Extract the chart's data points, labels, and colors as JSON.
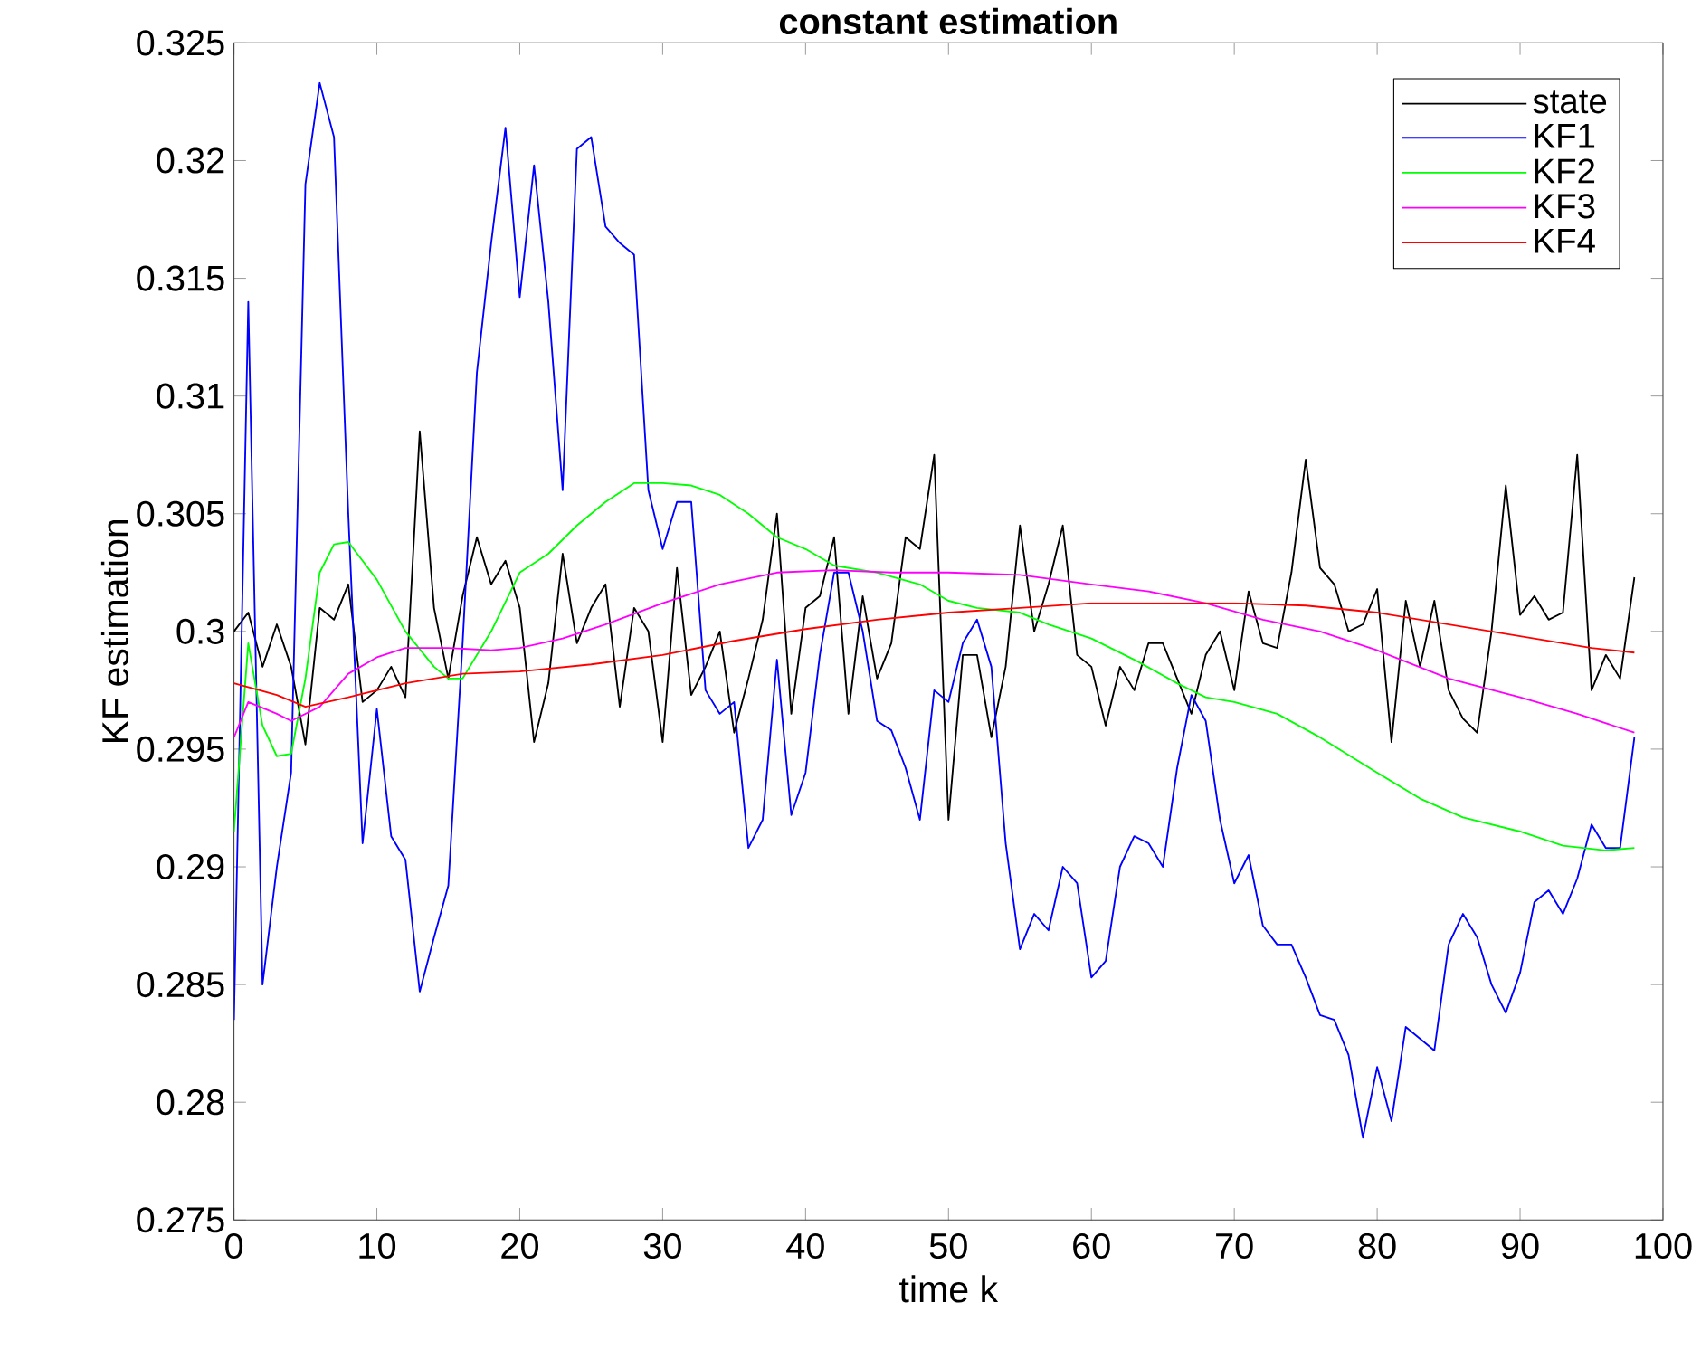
{
  "chart_data": {
    "type": "line",
    "title": "constant estimation",
    "xlabel": "time k",
    "ylabel": "KF estimation",
    "xlim": [
      0,
      100
    ],
    "xticks": [
      0,
      10,
      20,
      30,
      40,
      50,
      60,
      70,
      80,
      90,
      100
    ],
    "ylim": [
      0.275,
      0.325
    ],
    "yticks": [
      0.275,
      0.28,
      0.285,
      0.29,
      0.295,
      0.3,
      0.305,
      0.31,
      0.315,
      0.32,
      0.325
    ],
    "grid": false,
    "legend": "top right",
    "marker": "none",
    "line_style": "solid",
    "series": [
      {
        "name": "state",
        "color": "#000000",
        "x": [
          0,
          1,
          2,
          3,
          4,
          5,
          6,
          7,
          8,
          9,
          10,
          11,
          12,
          13,
          14,
          15,
          16,
          17,
          18,
          19,
          20,
          21,
          22,
          23,
          24,
          25,
          26,
          27,
          28,
          29,
          30,
          31,
          32,
          33,
          34,
          35,
          36,
          37,
          38,
          39,
          40,
          41,
          42,
          43,
          44,
          45,
          46,
          47,
          48,
          49,
          50,
          51,
          52,
          53,
          54,
          55,
          56,
          57,
          58,
          59,
          60,
          61,
          62,
          63,
          64,
          65,
          66,
          67,
          68,
          69,
          70,
          71,
          72,
          73,
          74,
          75,
          76,
          77,
          78,
          79,
          80,
          81,
          82,
          83,
          84,
          85,
          86,
          87,
          88,
          89,
          90,
          91,
          92,
          93,
          94,
          95,
          96,
          97,
          98
        ],
        "values": [
          0.3,
          0.3008,
          0.2985,
          0.3003,
          0.2985,
          0.2952,
          0.301,
          0.3005,
          0.302,
          0.297,
          0.2975,
          0.2985,
          0.2972,
          0.3085,
          0.301,
          0.298,
          0.3015,
          0.304,
          0.302,
          0.303,
          0.301,
          0.2953,
          0.2978,
          0.3033,
          0.2995,
          0.301,
          0.302,
          0.2968,
          0.301,
          0.3,
          0.2953,
          0.3027,
          0.2973,
          0.2985,
          0.3,
          0.2957,
          0.298,
          0.3005,
          0.305,
          0.2965,
          0.301,
          0.3015,
          0.304,
          0.2965,
          0.3015,
          0.298,
          0.2995,
          0.304,
          0.3035,
          0.3075,
          0.292,
          0.299,
          0.299,
          0.2955,
          0.2985,
          0.3045,
          0.3,
          0.302,
          0.3045,
          0.299,
          0.2985,
          0.296,
          0.2985,
          0.2975,
          0.2995,
          0.2995,
          0.298,
          0.2965,
          0.299,
          0.3,
          0.2975,
          0.3017,
          0.2995,
          0.2993,
          0.3025,
          0.3073,
          0.3027,
          0.302,
          0.3,
          0.3003,
          0.3018,
          0.2953,
          0.3013,
          0.2985,
          0.3013,
          0.2975,
          0.2963,
          0.2957,
          0.3,
          0.3062,
          0.3007,
          0.3015,
          0.3005,
          0.3008,
          0.3075,
          0.2975,
          0.299,
          0.298,
          0.3023
        ]
      },
      {
        "name": "KF1",
        "color": "#0000ff",
        "x": [
          0,
          1,
          2,
          3,
          4,
          5,
          6,
          7,
          8,
          9,
          10,
          11,
          12,
          13,
          14,
          15,
          16,
          17,
          18,
          19,
          20,
          21,
          22,
          23,
          24,
          25,
          26,
          27,
          28,
          29,
          30,
          31,
          32,
          33,
          34,
          35,
          36,
          37,
          38,
          39,
          40,
          41,
          42,
          43,
          44,
          45,
          46,
          47,
          48,
          49,
          50,
          51,
          52,
          53,
          54,
          55,
          56,
          57,
          58,
          59,
          60,
          61,
          62,
          63,
          64,
          65,
          66,
          67,
          68,
          69,
          70,
          71,
          72,
          73,
          74,
          75,
          76,
          77,
          78,
          79,
          80,
          81,
          82,
          83,
          84,
          85,
          86,
          87,
          88,
          89,
          90,
          91,
          92,
          93,
          94,
          95,
          96,
          97,
          98
        ],
        "values": [
          0.2835,
          0.314,
          0.285,
          0.29,
          0.294,
          0.319,
          0.3233,
          0.321,
          0.305,
          0.291,
          0.2967,
          0.2913,
          0.2903,
          0.2847,
          0.287,
          0.2892,
          0.2995,
          0.311,
          0.3165,
          0.3214,
          0.3142,
          0.3198,
          0.314,
          0.306,
          0.3205,
          0.321,
          0.3172,
          0.3165,
          0.316,
          0.306,
          0.3035,
          0.3055,
          0.3055,
          0.2975,
          0.2965,
          0.297,
          0.2908,
          0.292,
          0.2988,
          0.2922,
          0.294,
          0.299,
          0.3025,
          0.3025,
          0.3,
          0.2962,
          0.2958,
          0.2942,
          0.292,
          0.2975,
          0.297,
          0.2995,
          0.3005,
          0.2985,
          0.291,
          0.2865,
          0.288,
          0.2873,
          0.29,
          0.2893,
          0.2853,
          0.286,
          0.29,
          0.2913,
          0.291,
          0.29,
          0.2942,
          0.2973,
          0.2962,
          0.292,
          0.2893,
          0.2905,
          0.2875,
          0.2867,
          0.2867,
          0.2853,
          0.2837,
          0.2835,
          0.282,
          0.2785,
          0.2815,
          0.2792,
          0.2832,
          0.2827,
          0.2822,
          0.2867,
          0.288,
          0.287,
          0.285,
          0.2838,
          0.2855,
          0.2885,
          0.289,
          0.288,
          0.2895,
          0.2918,
          0.2908,
          0.2908,
          0.2955
        ]
      },
      {
        "name": "KF2",
        "color": "#00ff00",
        "x": [
          0,
          1,
          2,
          3,
          4,
          5,
          6,
          7,
          8,
          9,
          10,
          12,
          14,
          15,
          16,
          18,
          20,
          22,
          24,
          26,
          28,
          30,
          32,
          34,
          36,
          38,
          40,
          42,
          45,
          48,
          50,
          52,
          55,
          57,
          60,
          63,
          66,
          68,
          70,
          73,
          76,
          80,
          83,
          86,
          90,
          93,
          96,
          98
        ],
        "values": [
          0.2915,
          0.2995,
          0.296,
          0.2947,
          0.2948,
          0.298,
          0.3025,
          0.3037,
          0.3038,
          0.303,
          0.3022,
          0.3,
          0.2985,
          0.298,
          0.298,
          0.3,
          0.3025,
          0.3033,
          0.3045,
          0.3055,
          0.3063,
          0.3063,
          0.3062,
          0.3058,
          0.305,
          0.304,
          0.3035,
          0.3028,
          0.3025,
          0.302,
          0.3013,
          0.301,
          0.3008,
          0.3003,
          0.2997,
          0.2988,
          0.2978,
          0.2972,
          0.297,
          0.2965,
          0.2955,
          0.294,
          0.2929,
          0.2921,
          0.2915,
          0.2909,
          0.2907,
          0.2908
        ]
      },
      {
        "name": "KF3",
        "color": "#ff00ff",
        "x": [
          0,
          1,
          3,
          4,
          6,
          8,
          10,
          12,
          15,
          18,
          20,
          23,
          26,
          30,
          34,
          38,
          42,
          46,
          50,
          55,
          60,
          64,
          68,
          72,
          76,
          80,
          85,
          90,
          94,
          98
        ],
        "values": [
          0.2955,
          0.297,
          0.2965,
          0.2962,
          0.2968,
          0.2982,
          0.2989,
          0.2993,
          0.2993,
          0.2992,
          0.2993,
          0.2997,
          0.3003,
          0.3012,
          0.302,
          0.3025,
          0.3026,
          0.3025,
          0.3025,
          0.3024,
          0.302,
          0.3017,
          0.3012,
          0.3005,
          0.3,
          0.2992,
          0.298,
          0.2972,
          0.2965,
          0.2957
        ]
      },
      {
        "name": "KF4",
        "color": "#ff0000",
        "x": [
          0,
          3,
          5,
          8,
          12,
          16,
          20,
          25,
          30,
          35,
          40,
          45,
          50,
          55,
          60,
          65,
          70,
          75,
          80,
          85,
          90,
          95,
          98
        ],
        "values": [
          0.2978,
          0.2973,
          0.2968,
          0.2972,
          0.2978,
          0.2982,
          0.2983,
          0.2986,
          0.299,
          0.2996,
          0.3001,
          0.3005,
          0.3008,
          0.301,
          0.3012,
          0.3012,
          0.3012,
          0.3011,
          0.3008,
          0.3003,
          0.2998,
          0.2993,
          0.2991
        ]
      }
    ]
  }
}
